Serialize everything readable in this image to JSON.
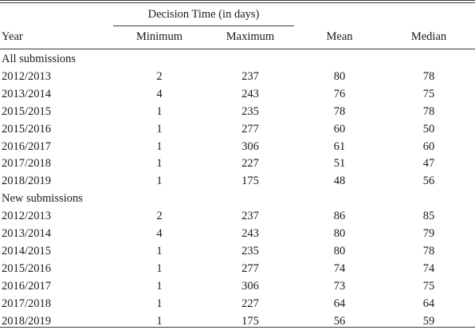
{
  "table": {
    "group_header": "Decision Time (in days)",
    "columns": {
      "year": "Year",
      "minimum": "Minimum",
      "maximum": "Maximum",
      "mean": "Mean",
      "median": "Median"
    },
    "sections": [
      {
        "title": "All submissions",
        "rows": [
          {
            "year": "2012/2013",
            "minimum": "2",
            "maximum": "237",
            "mean": "80",
            "median": "78"
          },
          {
            "year": "2013/2014",
            "minimum": "4",
            "maximum": "243",
            "mean": "76",
            "median": "75"
          },
          {
            "year": "2015/2015",
            "minimum": "1",
            "maximum": "235",
            "mean": "78",
            "median": "78"
          },
          {
            "year": "2015/2016",
            "minimum": "1",
            "maximum": "277",
            "mean": "60",
            "median": "50"
          },
          {
            "year": "2016/2017",
            "minimum": "1",
            "maximum": "306",
            "mean": "61",
            "median": "60"
          },
          {
            "year": "2017/2018",
            "minimum": "1",
            "maximum": "227",
            "mean": "51",
            "median": "47"
          },
          {
            "year": "2018/2019",
            "minimum": "1",
            "maximum": "175",
            "mean": "48",
            "median": "56"
          }
        ]
      },
      {
        "title": "New submissions",
        "rows": [
          {
            "year": "2012/2013",
            "minimum": "2",
            "maximum": "237",
            "mean": "86",
            "median": "85"
          },
          {
            "year": "2013/2014",
            "minimum": "4",
            "maximum": "243",
            "mean": "80",
            "median": "79"
          },
          {
            "year": "2014/2015",
            "minimum": "1",
            "maximum": "235",
            "mean": "80",
            "median": "78"
          },
          {
            "year": "2015/2016",
            "minimum": "1",
            "maximum": "277",
            "mean": "74",
            "median": "74"
          },
          {
            "year": "2016/2017",
            "minimum": "1",
            "maximum": "306",
            "mean": "73",
            "median": "75"
          },
          {
            "year": "2017/2018",
            "minimum": "1",
            "maximum": "227",
            "mean": "64",
            "median": "64"
          },
          {
            "year": "2018/2019",
            "minimum": "1",
            "maximum": "175",
            "mean": "56",
            "median": "59"
          }
        ]
      }
    ]
  }
}
